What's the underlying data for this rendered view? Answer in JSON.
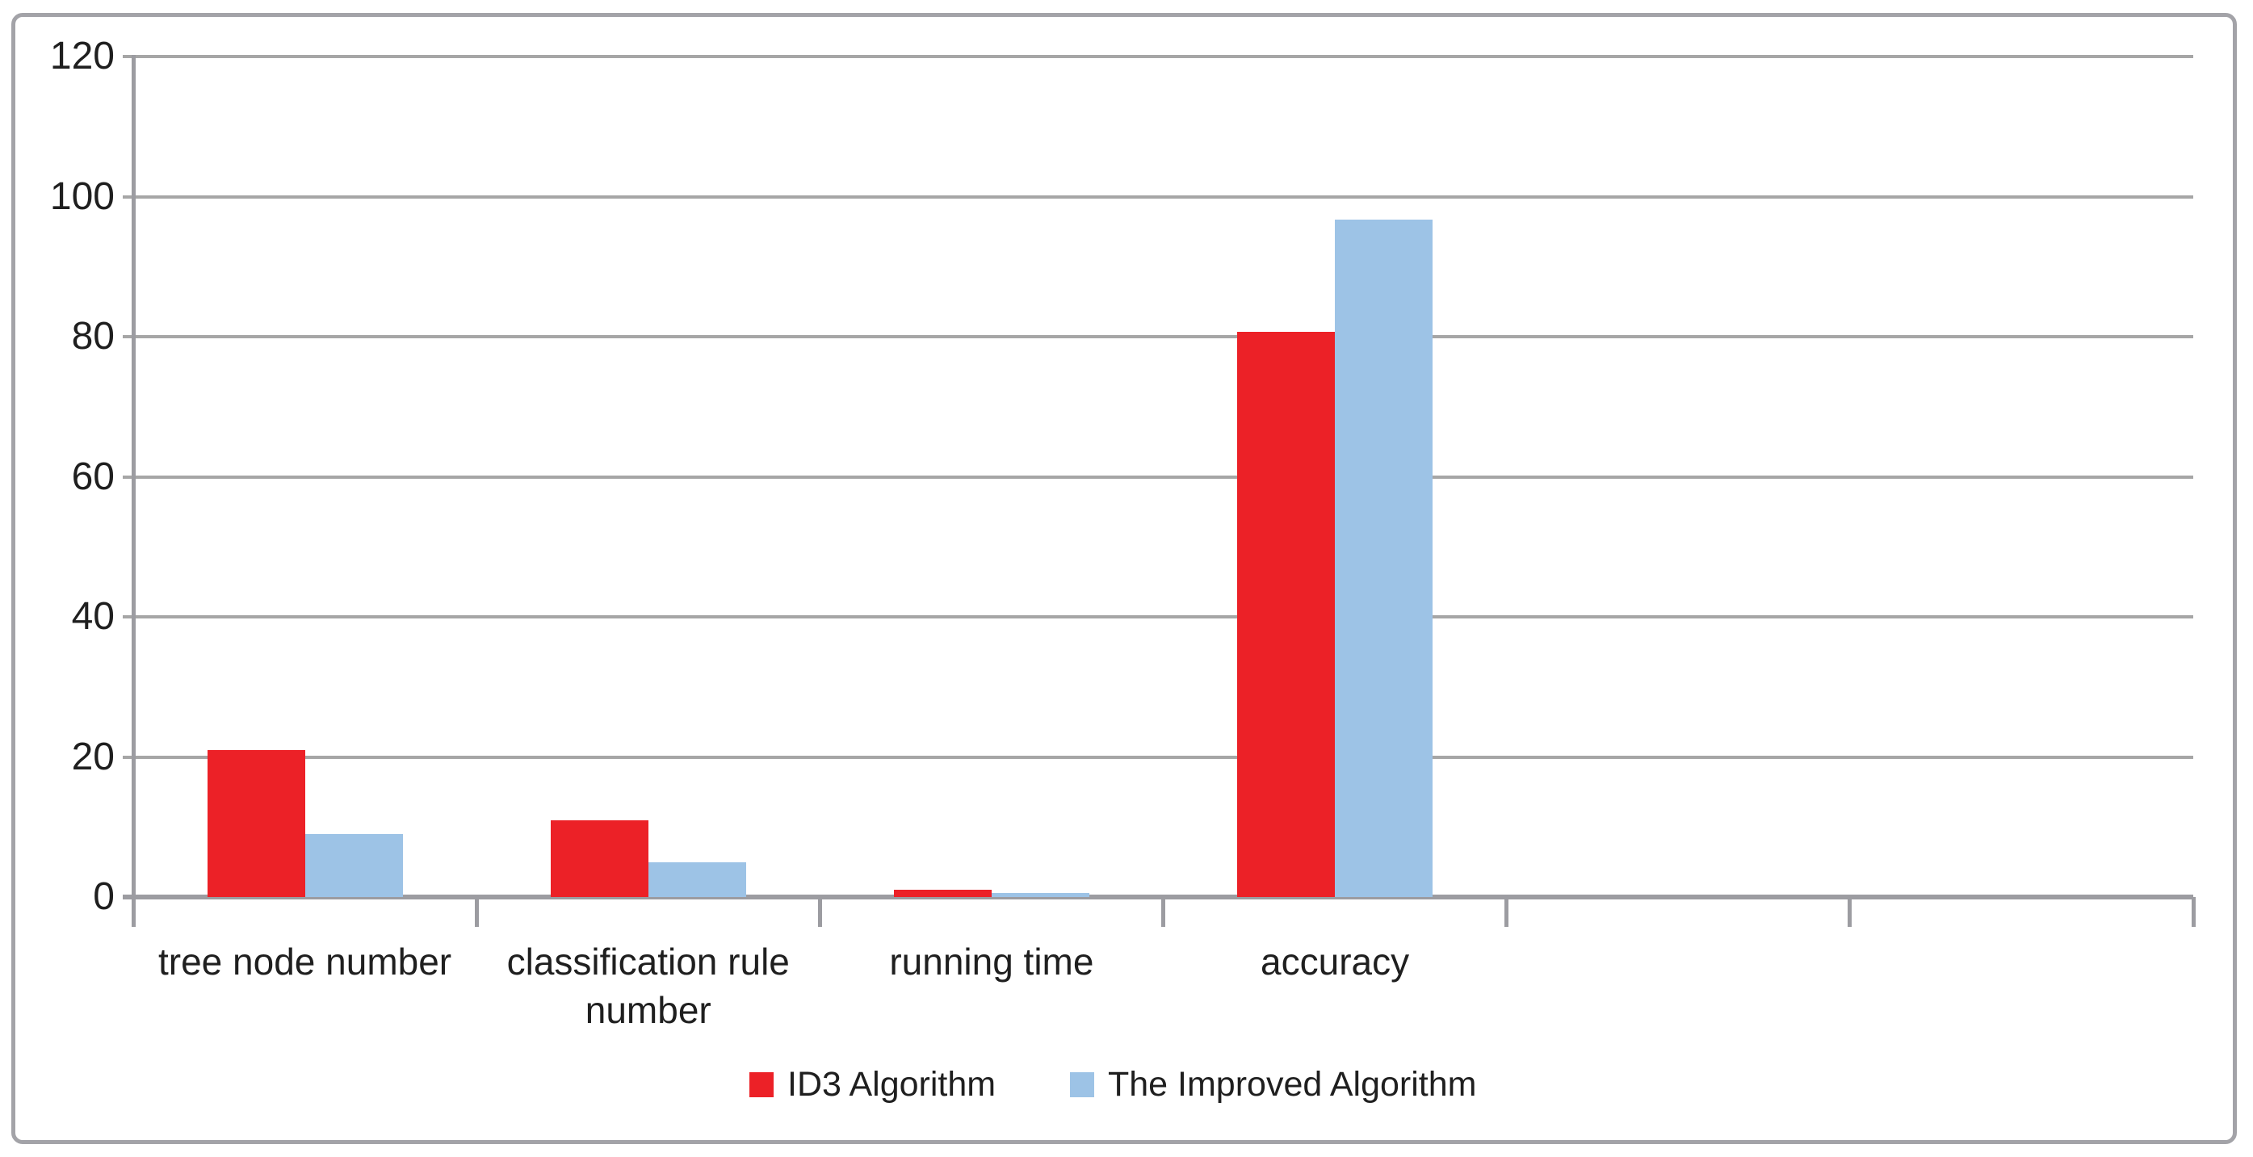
{
  "chart_data": {
    "type": "bar",
    "title": "",
    "xlabel": "",
    "ylabel": "",
    "categories": [
      "tree node number",
      "classification rule number",
      "running time",
      "accuracy"
    ],
    "series": [
      {
        "name": "ID3 Algorithm",
        "color": "#ec2127",
        "values": [
          21,
          11,
          1,
          80.7
        ]
      },
      {
        "name": "The Improved Algorithm",
        "color": "#9dc3e6",
        "values": [
          9,
          5,
          0.6,
          96.7
        ]
      }
    ],
    "ylim": [
      0,
      120
    ],
    "ytick_interval": 20,
    "yticks": [
      "0",
      "20",
      "40",
      "60",
      "80",
      "100",
      "120"
    ],
    "total_category_slots": 6,
    "grid": true,
    "legend_position": "bottom",
    "axis_color": "#a6a6a6",
    "frame_color": "#a3a3a8"
  }
}
